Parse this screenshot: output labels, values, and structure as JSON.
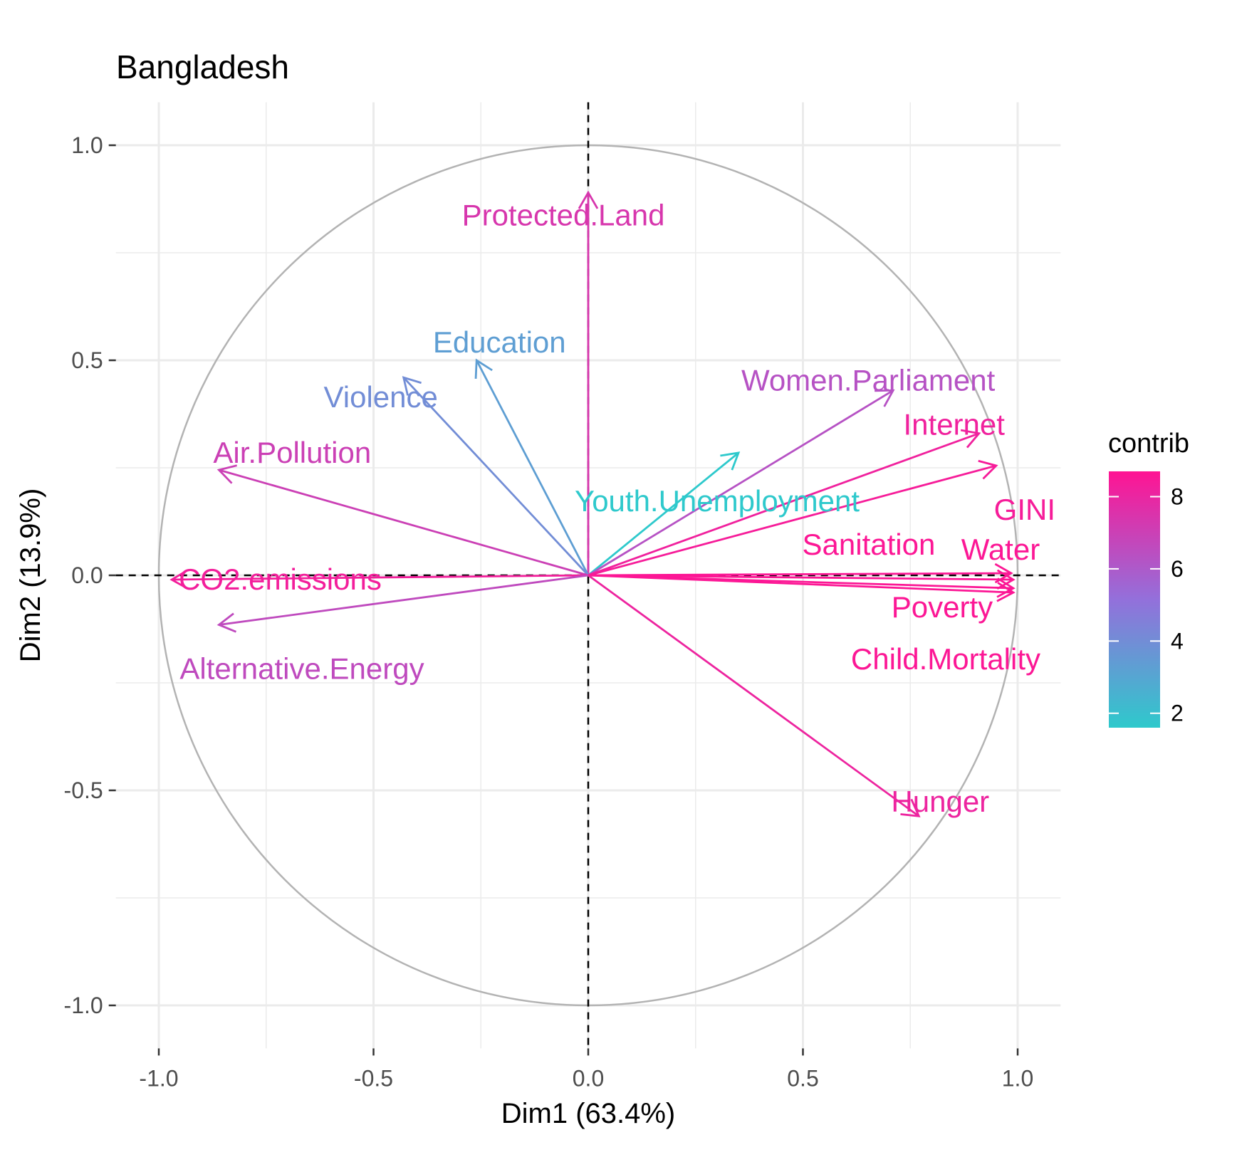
{
  "chart_data": {
    "type": "pca_variable_correlation_circle",
    "title": "Bangladesh",
    "xlabel": "Dim1 (63.4%)",
    "ylabel": "Dim2 (13.9%)",
    "xlim": [
      -1.1,
      1.1
    ],
    "ylim": [
      -1.1,
      1.1
    ],
    "x_ticks": [
      -1.0,
      -0.5,
      0.0,
      0.5,
      1.0
    ],
    "y_ticks": [
      -1.0,
      -0.5,
      0.0,
      0.5,
      1.0
    ],
    "x_tick_labels": [
      "-1.0",
      "-0.5",
      "0.0",
      "0.5",
      "1.0"
    ],
    "y_tick_labels": [
      "-1.0",
      "-0.5",
      "0.0",
      "0.5",
      "1.0"
    ],
    "grid": true,
    "unit_circle": true,
    "reference_lines": "dashed at x=0 and y=0",
    "legend": {
      "title": "contrib",
      "type": "gradient",
      "position": "right",
      "ticks": [
        2,
        4,
        6,
        8
      ],
      "range": [
        1.6,
        8.7
      ],
      "low_color": "#2ec9cc",
      "mid_color": "#9370db",
      "high_color": "#ff1493"
    },
    "variables": [
      {
        "name": "Protected.Land",
        "x": 0.0,
        "y": 0.89,
        "contrib": 7.4
      },
      {
        "name": "Education",
        "x": -0.26,
        "y": 0.5,
        "contrib": 3.3
      },
      {
        "name": "Violence",
        "x": -0.43,
        "y": 0.46,
        "contrib": 4.0
      },
      {
        "name": "Air.Pollution",
        "x": -0.86,
        "y": 0.245,
        "contrib": 7.0
      },
      {
        "name": "CO2.emissions",
        "x": -0.97,
        "y": -0.01,
        "contrib": 8.3
      },
      {
        "name": "Alternative.Energy",
        "x": -0.86,
        "y": -0.115,
        "contrib": 6.6
      },
      {
        "name": "Youth.Unemployment",
        "x": 0.35,
        "y": 0.285,
        "contrib": 1.6
      },
      {
        "name": "Women.Parliament",
        "x": 0.71,
        "y": 0.43,
        "contrib": 6.3
      },
      {
        "name": "Internet",
        "x": 0.91,
        "y": 0.33,
        "contrib": 8.2
      },
      {
        "name": "GINI",
        "x": 0.95,
        "y": 0.255,
        "contrib": 8.4
      },
      {
        "name": "Sanitation",
        "x": 0.985,
        "y": 0.005,
        "contrib": 8.6
      },
      {
        "name": "Water",
        "x": 0.99,
        "y": -0.01,
        "contrib": 8.6
      },
      {
        "name": "Poverty",
        "x": 0.99,
        "y": -0.03,
        "contrib": 8.6
      },
      {
        "name": "Child.Mortality",
        "x": 0.99,
        "y": -0.04,
        "contrib": 8.6
      },
      {
        "name": "Hunger",
        "x": 0.77,
        "y": -0.56,
        "contrib": 8.1
      }
    ]
  }
}
